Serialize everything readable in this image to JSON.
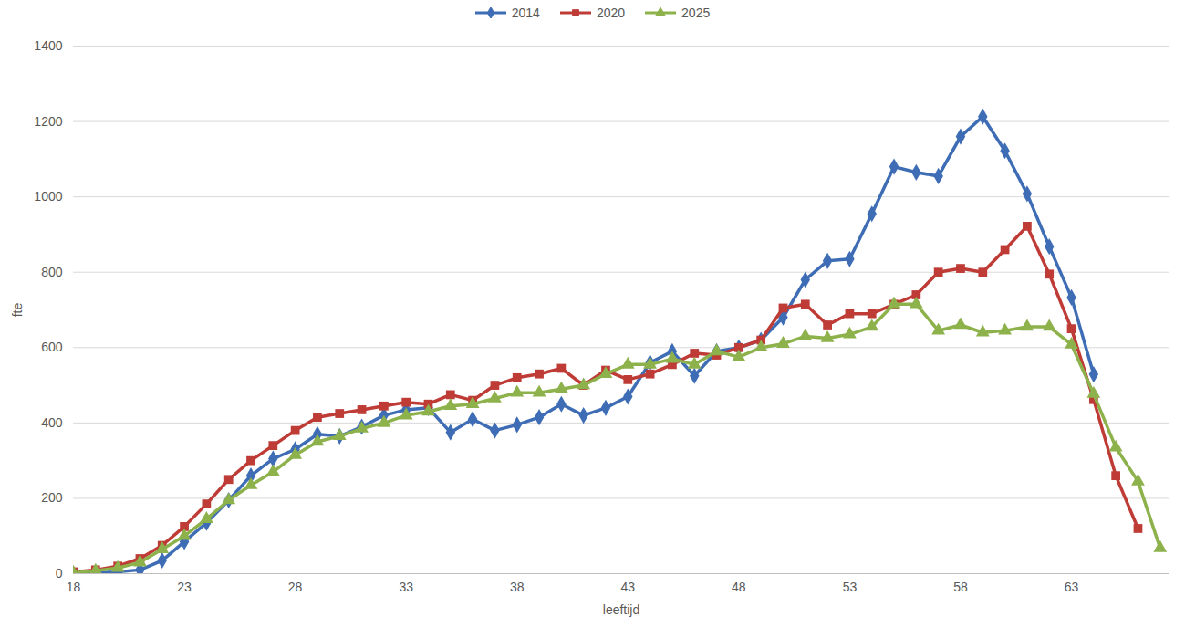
{
  "chart_data": {
    "type": "line",
    "x_label": "leeftijd",
    "y_label": "fte",
    "x": [
      18,
      19,
      20,
      21,
      22,
      23,
      24,
      25,
      26,
      27,
      28,
      29,
      30,
      31,
      32,
      33,
      34,
      35,
      36,
      37,
      38,
      39,
      40,
      41,
      42,
      43,
      44,
      45,
      46,
      47,
      48,
      49,
      50,
      51,
      52,
      53,
      54,
      55,
      56,
      57,
      58,
      59,
      60,
      61,
      62,
      63,
      64,
      65,
      66,
      67
    ],
    "series": [
      {
        "name": "2014",
        "color": "#3e6db5",
        "marker": "diamond",
        "values": [
          0,
          2,
          5,
          10,
          35,
          85,
          135,
          195,
          260,
          305,
          330,
          370,
          365,
          390,
          420,
          435,
          440,
          375,
          410,
          380,
          395,
          415,
          450,
          420,
          440,
          470,
          560,
          590,
          525,
          590,
          600,
          620,
          680,
          780,
          830,
          835,
          955,
          1080,
          1065,
          1055,
          1160,
          1213,
          1122,
          1008,
          868,
          733,
          529,
          null,
          null,
          null
        ]
      },
      {
        "name": "2020",
        "color": "#be3b36",
        "marker": "square",
        "values": [
          5,
          10,
          20,
          40,
          75,
          125,
          185,
          250,
          300,
          340,
          380,
          415,
          425,
          435,
          445,
          455,
          450,
          475,
          460,
          500,
          520,
          530,
          545,
          500,
          540,
          515,
          530,
          555,
          585,
          580,
          600,
          620,
          705,
          715,
          660,
          690,
          690,
          715,
          740,
          800,
          810,
          800,
          860,
          922,
          795,
          650,
          462,
          260,
          120,
          null
        ]
      },
      {
        "name": "2025",
        "color": "#8db14b",
        "marker": "triangle",
        "values": [
          2,
          8,
          15,
          30,
          65,
          100,
          145,
          195,
          235,
          270,
          315,
          350,
          365,
          385,
          400,
          420,
          430,
          445,
          450,
          465,
          480,
          480,
          490,
          500,
          530,
          555,
          555,
          570,
          555,
          590,
          575,
          600,
          610,
          630,
          625,
          635,
          655,
          715,
          715,
          645,
          660,
          640,
          645,
          655,
          655,
          608,
          477,
          335,
          245,
          68
        ]
      }
    ],
    "xlim": [
      18,
      67.4
    ],
    "xticks": [
      18,
      23,
      28,
      33,
      38,
      43,
      48,
      53,
      58,
      63
    ],
    "ylim": [
      0,
      1400
    ],
    "yticks": [
      0,
      200,
      400,
      600,
      800,
      1000,
      1200,
      1400
    ],
    "grid": true,
    "legend": "top"
  }
}
